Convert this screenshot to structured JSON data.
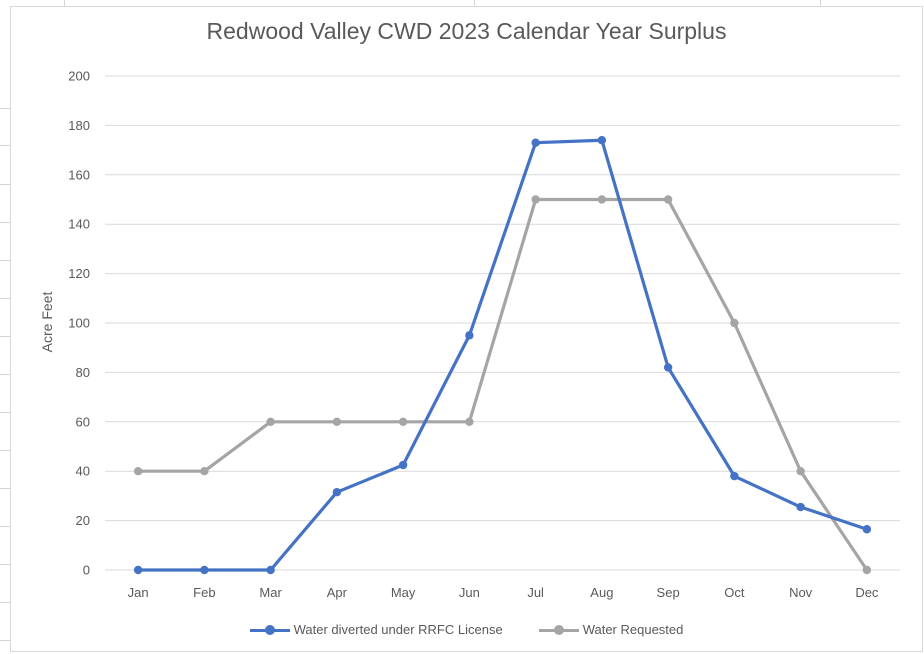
{
  "chart_data": {
    "type": "line",
    "title": "Redwood Valley CWD 2023 Calendar Year Surplus",
    "xlabel": "",
    "ylabel": "Acre Feet",
    "ylim": [
      0,
      200
    ],
    "yticks": [
      "0",
      "20",
      "40",
      "60",
      "80",
      "100",
      "120",
      "140",
      "160",
      "180",
      "200"
    ],
    "categories": [
      "Jan",
      "Feb",
      "Mar",
      "Apr",
      "May",
      "Jun",
      "Jul",
      "Aug",
      "Sep",
      "Oct",
      "Nov",
      "Dec"
    ],
    "grid": "horizontal",
    "legend_position": "bottom",
    "series": [
      {
        "name": "Water diverted under RRFC License",
        "color": "#4472c4",
        "values": [
          0,
          0,
          0,
          31.5,
          42.5,
          95,
          173,
          174,
          82,
          38,
          25.5,
          16.5
        ]
      },
      {
        "name": "Water Requested",
        "color": "#a5a5a5",
        "values": [
          40,
          40,
          60,
          60,
          60,
          60,
          150,
          150,
          150,
          100,
          40,
          0
        ]
      }
    ]
  }
}
